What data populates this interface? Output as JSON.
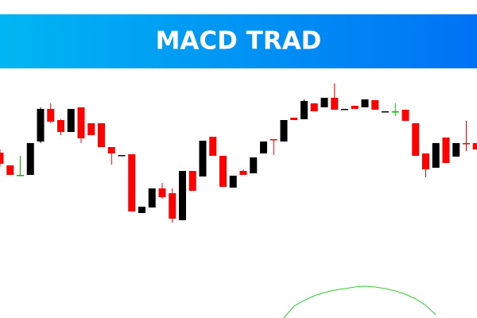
{
  "chart_data": {
    "type": "candlestick",
    "title": "MACD TRAD",
    "ylim": [
      0,
      300
    ],
    "open": [
      208,
      192,
      180,
      180,
      222,
      263,
      249,
      234,
      265,
      245,
      245,
      215,
      205,
      206,
      132,
      139,
      163,
      157,
      123,
      185,
      178,
      228,
      204,
      164,
      185,
      182,
      207,
      225,
      222,
      252,
      250,
      270,
      265,
      277,
      263,
      267,
      265,
      274,
      260,
      260,
      262,
      245,
      207,
      189,
      227,
      203,
      220,
      220
    ],
    "high": [
      212,
      192,
      204,
      220,
      265,
      270,
      250,
      263,
      265,
      245,
      245,
      215,
      205,
      206,
      140,
      163,
      170,
      163,
      185,
      185,
      223,
      228,
      204,
      179,
      187,
      202,
      222,
      225,
      249,
      252,
      275,
      270,
      277,
      295,
      263,
      267,
      275,
      274,
      260,
      270,
      262,
      245,
      207,
      220,
      227,
      220,
      248,
      220
    ],
    "low": [
      190,
      180,
      178,
      180,
      220,
      245,
      230,
      234,
      220,
      230,
      215,
      193,
      205,
      134,
      132,
      139,
      150,
      120,
      123,
      160,
      178,
      204,
      165,
      164,
      180,
      182,
      207,
      205,
      222,
      249,
      250,
      260,
      265,
      262,
      263,
      263,
      265,
      262,
      260,
      254,
      248,
      204,
      177,
      189,
      195,
      203,
      210,
      212
    ],
    "close": [
      194,
      180,
      180,
      220,
      263,
      247,
      234,
      263,
      226,
      230,
      215,
      207,
      205,
      134,
      140,
      163,
      152,
      125,
      185,
      160,
      223,
      204,
      165,
      179,
      180,
      202,
      222,
      225,
      249,
      249,
      273,
      260,
      277,
      262,
      263,
      263,
      275,
      262,
      260,
      260,
      248,
      204,
      187,
      220,
      195,
      220,
      220,
      212
    ],
    "colors": [
      "#ff0000",
      "#ff0000",
      "#00c000",
      "#000000",
      "#000000",
      "#ff0000",
      "#ff0000",
      "#000000",
      "#ff0000",
      "#ff0000",
      "#ff0000",
      "#ff0000",
      "#000000",
      "#ff0000",
      "#000000",
      "#000000",
      "#ff0000",
      "#ff0000",
      "#000000",
      "#ff0000",
      "#000000",
      "#ff0000",
      "#ff0000",
      "#000000",
      "#ff0000",
      "#000000",
      "#000000",
      "#ff0000",
      "#000000",
      "#ff0000",
      "#000000",
      "#ff0000",
      "#000000",
      "#ff0000",
      "#000000",
      "#ff0000",
      "#000000",
      "#ff0000",
      "#000000",
      "#00c000",
      "#ff0000",
      "#ff0000",
      "#ff0000",
      "#000000",
      "#ff0000",
      "#000000",
      "#ff0000",
      "#ff0000"
    ],
    "line": {
      "color": "#33cc33",
      "values": [
        null,
        null,
        null,
        null,
        null,
        null,
        null,
        null,
        null,
        null,
        null,
        null,
        null,
        null,
        null,
        null,
        null,
        null,
        null,
        null,
        null,
        null,
        null,
        null,
        null,
        null,
        null,
        null,
        0,
        15,
        22,
        28,
        32,
        35,
        37,
        39,
        40,
        39,
        37,
        34,
        30,
        24,
        16,
        4,
        null,
        null,
        null,
        null
      ]
    }
  }
}
